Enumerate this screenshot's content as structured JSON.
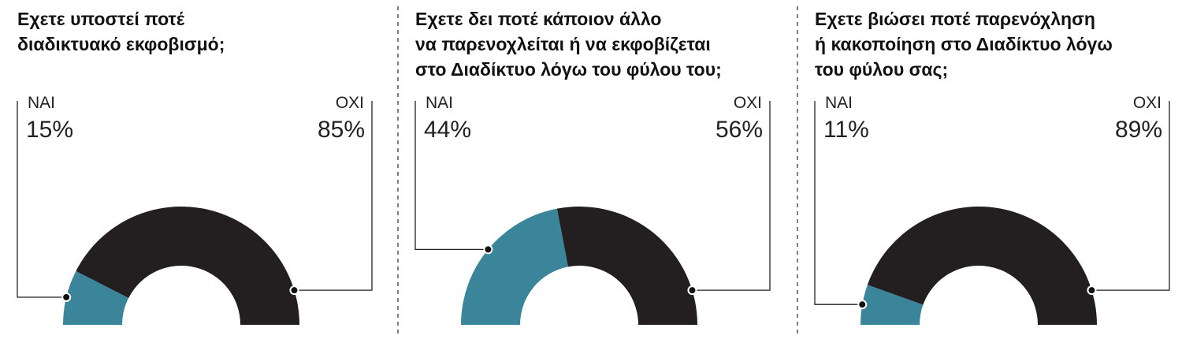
{
  "chart_data": [
    {
      "type": "pie",
      "title": "Εχετε υποστεί ποτέ\nδιαδικτυακό εκφοβισμό;",
      "categories": [
        "ΝΑΙ",
        "ΟΧΙ"
      ],
      "values": [
        15,
        85
      ],
      "value_labels": [
        "15%",
        "85%"
      ],
      "colors": [
        "#3a8599",
        "#231f20"
      ]
    },
    {
      "type": "pie",
      "title": "Εχετε δει ποτέ κάποιον άλλο\nνα παρενοχλείται ή να εκφοβίζεται\nστο Διαδίκτυο λόγω του φύλου του;",
      "categories": [
        "ΝΑΙ",
        "ΟΧΙ"
      ],
      "values": [
        44,
        56
      ],
      "value_labels": [
        "44%",
        "56%"
      ],
      "colors": [
        "#3a8599",
        "#231f20"
      ]
    },
    {
      "type": "pie",
      "title": "Εχετε βιώσει ποτέ παρενόχληση\nή κακοποίηση στο Διαδίκτυο λόγω\nτου φύλου σας;",
      "categories": [
        "ΝΑΙ",
        "ΟΧΙ"
      ],
      "values": [
        11,
        89
      ],
      "value_labels": [
        "11%",
        "89%"
      ],
      "colors": [
        "#3a8599",
        "#231f20"
      ]
    }
  ]
}
